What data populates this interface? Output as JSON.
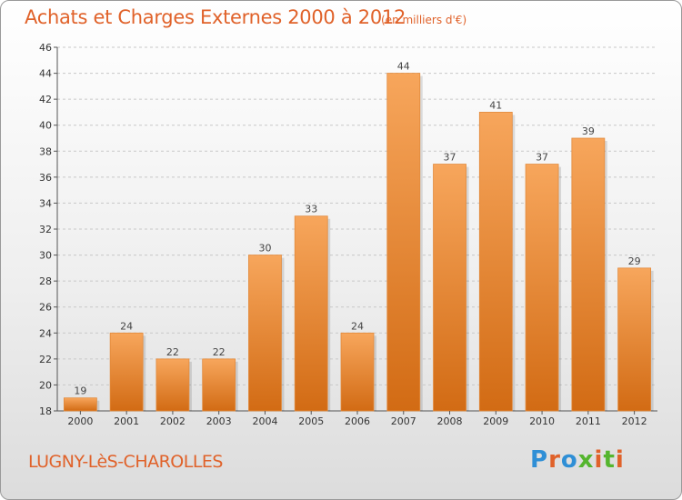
{
  "header": {
    "title": "Achats et Charges Externes 2000 à 2012",
    "unit": "(en milliers d'€)"
  },
  "footer": {
    "commune": "LUGNY-LèS-CHAROLLES",
    "logo": "Proxiti"
  },
  "colors": {
    "accent": "#e0622a",
    "bar_top": "#f7a65c",
    "bar_bottom": "#d26b14",
    "logo_letters": [
      "#2f8fd6",
      "#e0622a",
      "#2f8fd6",
      "#55b52e",
      "#e0622a",
      "#55b52e",
      "#e0622a"
    ]
  },
  "chart_data": {
    "type": "bar",
    "title": "Achats et Charges Externes 2000 à 2012",
    "subtitle": "(en milliers d'€)",
    "categories": [
      "2000",
      "2001",
      "2002",
      "2003",
      "2004",
      "2005",
      "2006",
      "2007",
      "2008",
      "2009",
      "2010",
      "2011",
      "2012"
    ],
    "values": [
      19,
      24,
      22,
      22,
      30,
      33,
      24,
      44,
      37,
      41,
      37,
      39,
      29
    ],
    "ylim": [
      18,
      46
    ],
    "yticks": [
      18,
      20,
      22,
      24,
      26,
      28,
      30,
      32,
      34,
      36,
      38,
      40,
      42,
      44,
      46
    ],
    "grid": true,
    "data_labels": true
  }
}
